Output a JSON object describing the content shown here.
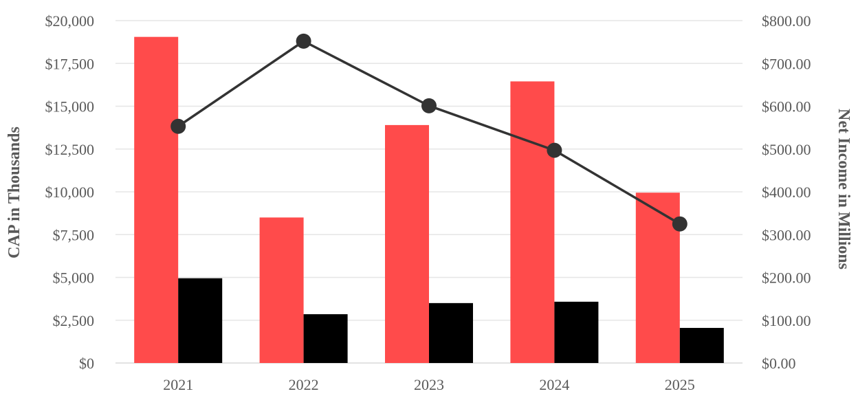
{
  "chart_data": {
    "type": "bar",
    "categories": [
      "2021",
      "2022",
      "2023",
      "2024",
      "2025"
    ],
    "series": [
      {
        "kind": "bar",
        "axis": "left",
        "color": "#ff4b4b",
        "values": [
          19050,
          8500,
          13900,
          16450,
          9950
        ]
      },
      {
        "kind": "bar",
        "axis": "left",
        "color": "#000000",
        "values": [
          4950,
          2850,
          3500,
          3580,
          2050
        ]
      },
      {
        "kind": "line",
        "axis": "right",
        "color": "#333333",
        "values": [
          553,
          752,
          601,
          497,
          325
        ]
      }
    ],
    "xlabel": "",
    "ylabel": "CAP in Thousands",
    "y2label": "Net Income in Millions",
    "ylim": [
      0,
      20000
    ],
    "y2lim": [
      0,
      800
    ],
    "yticks": [
      "$0",
      "$2,500",
      "$5,000",
      "$7,500",
      "$10,000",
      "$12,500",
      "$15,000",
      "$17,500",
      "$20,000"
    ],
    "y2ticks": [
      "$0.00",
      "$100.00",
      "$200.00",
      "$300.00",
      "$400.00",
      "$500.00",
      "$600.00",
      "$700.00",
      "$800.00"
    ],
    "grid": true,
    "legend": "none"
  }
}
